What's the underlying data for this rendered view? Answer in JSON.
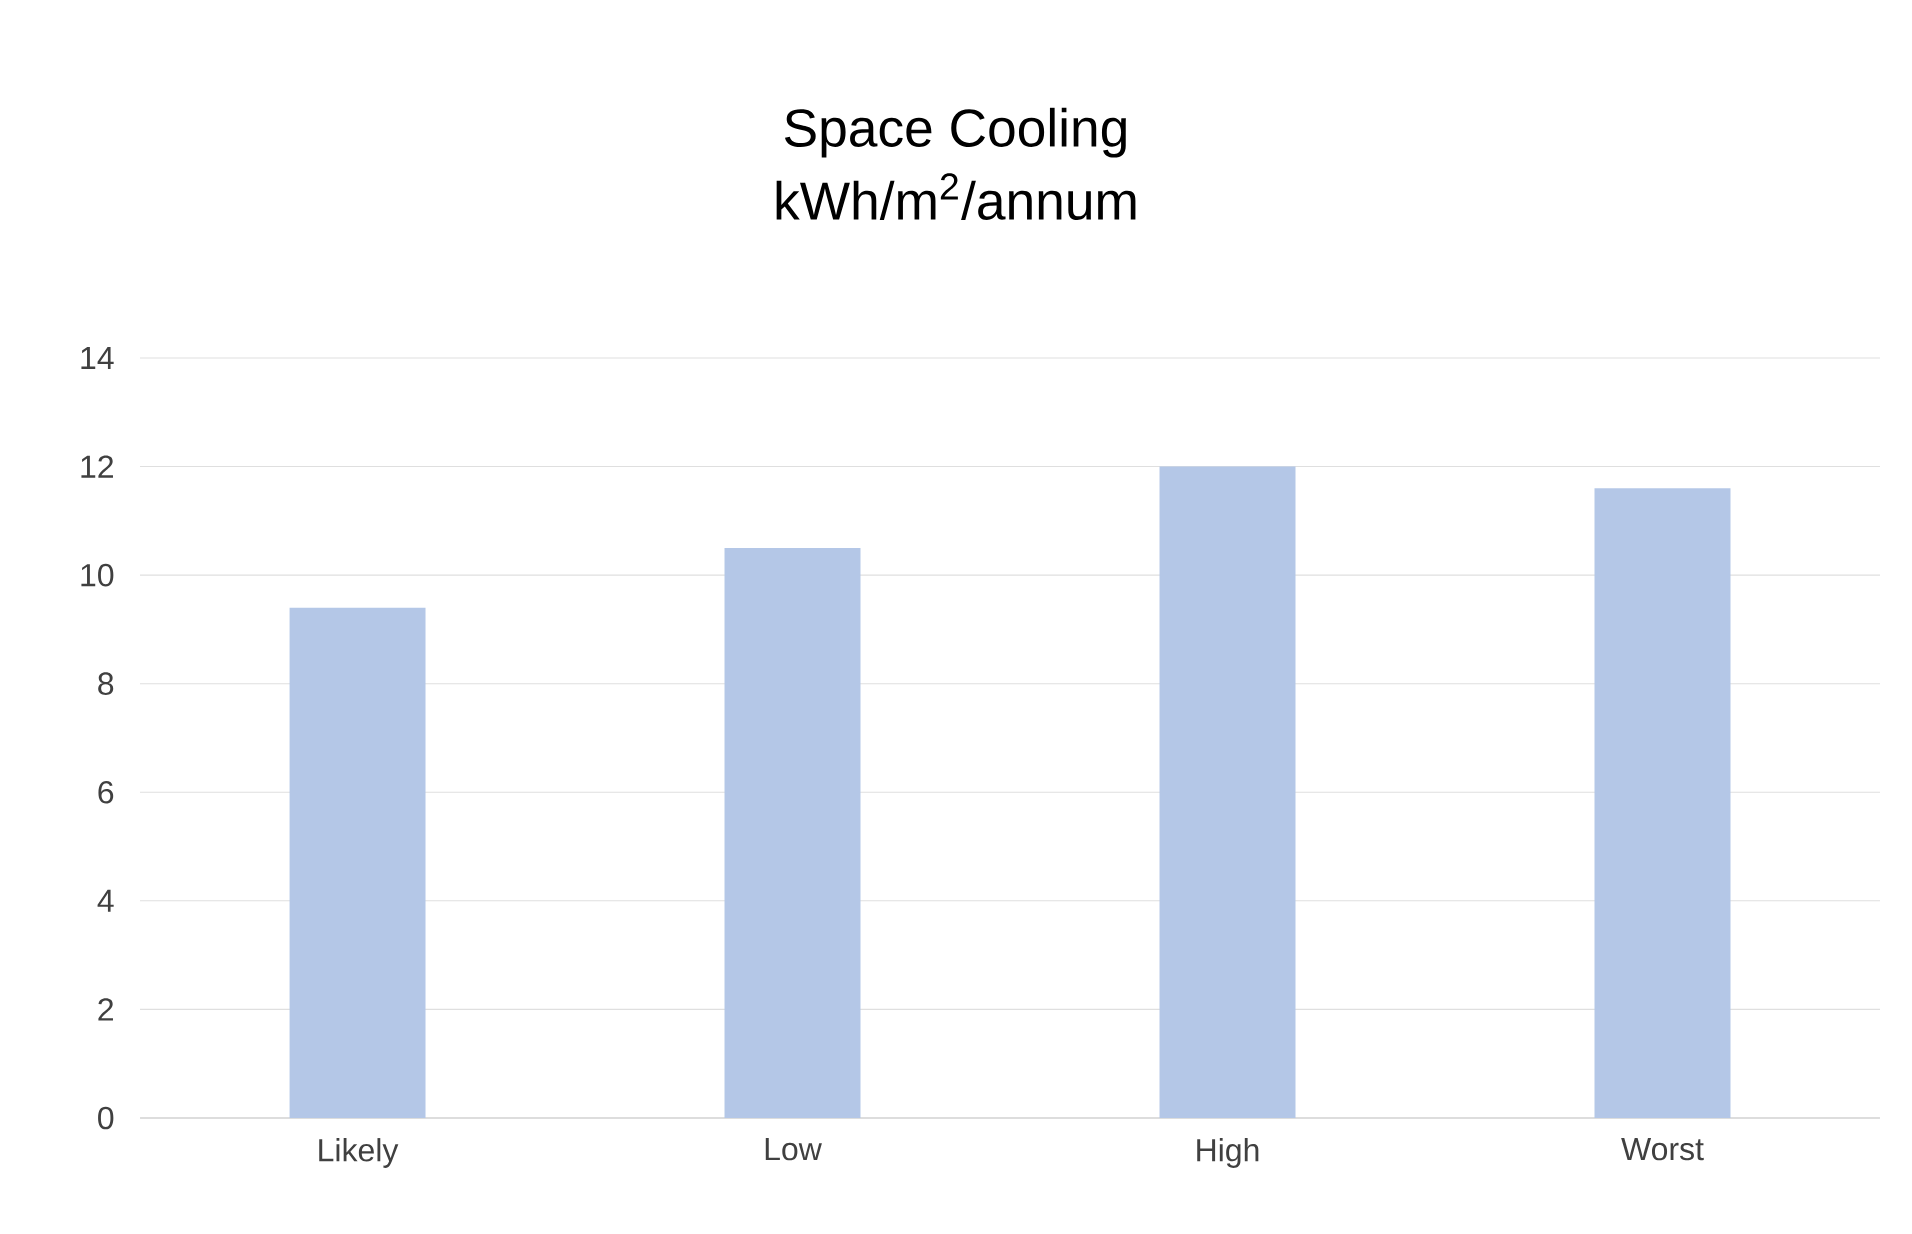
{
  "chart_data": {
    "type": "bar",
    "title": "Space Cooling",
    "subtitle": "kWh/m$^{2}$/annum",
    "categories": [
      "Likely",
      "Low",
      "High",
      "Worst"
    ],
    "values": [
      9.4,
      10.5,
      12.0,
      11.6
    ],
    "color": "#b4c7e7",
    "ylim": [
      0,
      14
    ],
    "yticks": [
      0,
      2,
      4,
      6,
      8,
      10,
      12,
      14
    ],
    "grid": "y"
  }
}
